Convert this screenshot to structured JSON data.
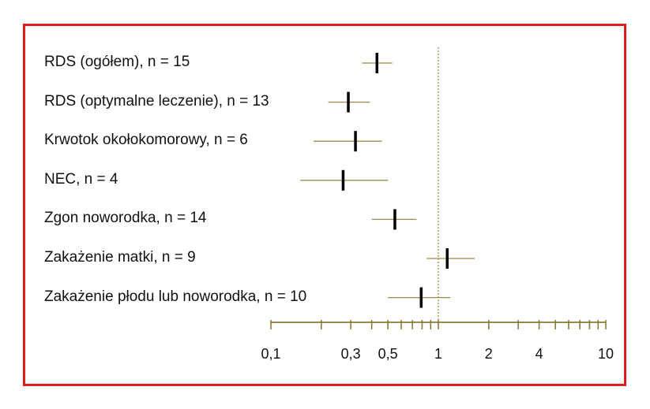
{
  "chart_data": {
    "type": "forest",
    "x_scale": "log",
    "xlim": [
      0.1,
      10
    ],
    "reference_line": 1,
    "rows": [
      {
        "label": "RDS (ogółem), n = 15",
        "estimate": 0.43,
        "ci": [
          0.35,
          0.53
        ]
      },
      {
        "label": "RDS (optymalne leczenie), n = 13",
        "estimate": 0.29,
        "ci": [
          0.22,
          0.39
        ]
      },
      {
        "label": "Krwotok okołokomorowy, n = 6",
        "estimate": 0.32,
        "ci": [
          0.18,
          0.46
        ]
      },
      {
        "label": "NEC, n = 4",
        "estimate": 0.27,
        "ci": [
          0.15,
          0.5
        ]
      },
      {
        "label": "Zgon noworodka, n = 14",
        "estimate": 0.55,
        "ci": [
          0.4,
          0.74
        ]
      },
      {
        "label": "Zakażenie matki, n = 9",
        "estimate": 1.13,
        "ci": [
          0.85,
          1.65
        ]
      },
      {
        "label": "Zakażenie płodu lub noworodka, n = 10",
        "estimate": 0.79,
        "ci": [
          0.5,
          1.18
        ]
      }
    ],
    "tick_labels": [
      {
        "value": 0.1,
        "text": "0,1"
      },
      {
        "value": 0.3,
        "text": "0,3"
      },
      {
        "value": 0.5,
        "text": "0,5"
      },
      {
        "value": 1,
        "text": "1"
      },
      {
        "value": 2,
        "text": "2"
      },
      {
        "value": 4,
        "text": "4"
      },
      {
        "value": 10,
        "text": "10"
      }
    ],
    "minor_ticks": [
      0.1,
      0.2,
      0.3,
      0.4,
      0.5,
      0.6,
      0.7,
      0.8,
      0.9,
      1,
      2,
      3,
      4,
      5,
      6,
      7,
      8,
      9,
      10
    ]
  },
  "colors": {
    "frame": "#e01b1b",
    "axis": "#8a7a3a",
    "ci_line": "#9c8a4a",
    "estimate": "#000000",
    "reference": "#b07a3a",
    "text": "#111111"
  }
}
